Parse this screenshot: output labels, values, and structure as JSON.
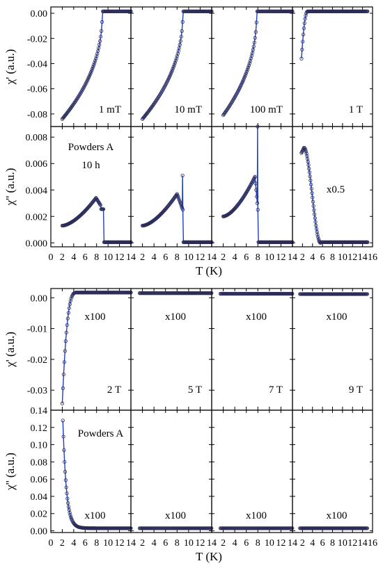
{
  "chart_data": {
    "type": "scatter",
    "x_axis_label": "T (K)",
    "x_ticks": [
      "0",
      "2",
      "4",
      "6",
      "8",
      "10",
      "12",
      "14",
      "16"
    ],
    "groups": [
      {
        "rows": [
          {
            "ylabel": "χ' (a.u.)",
            "ylim": [
              -0.09,
              0.005
            ],
            "yticks": [
              "0.00",
              "-0.02",
              "-0.04",
              "-0.06",
              "-0.08"
            ],
            "ytick_values": [
              0.0,
              -0.02,
              -0.04,
              -0.06,
              -0.08
            ],
            "panels": [
              {
                "field": "1 mT",
                "curve": "dia",
                "params": {
                  "Tc": 9.0,
                  "xmin": 2.0,
                  "xmax": 14,
                  "base": 0.0015,
                  "depth": -0.0855
                }
              },
              {
                "field": "10 mT",
                "curve": "dia",
                "params": {
                  "Tc": 9.0,
                  "xmin": 2.0,
                  "xmax": 14,
                  "base": 0.0015,
                  "depth": -0.0855
                }
              },
              {
                "field": "100 mT",
                "curve": "dia",
                "params": {
                  "Tc": 7.8,
                  "xmin": 2.0,
                  "xmax": 14,
                  "base": 0.0015,
                  "depth": -0.0825
                }
              },
              {
                "field": "1 T",
                "curve": "sat",
                "params": {
                  "Tc": 3.0,
                  "xmin": 1.8,
                  "xmax": 15,
                  "base": 0.0015,
                  "depth": -0.0375,
                  "p": 2
                }
              }
            ]
          },
          {
            "ylabel": "χ'' (a.u.)",
            "ylim": [
              -0.0003,
              0.0088
            ],
            "yticks": [
              "0.008",
              "0.006",
              "0.004",
              "0.002",
              "0.000"
            ],
            "ytick_values": [
              0.008,
              0.006,
              0.004,
              0.002,
              0.0
            ],
            "panels": [
              {
                "label": "Powders A",
                "sublabel": "10 h",
                "curve": "peak",
                "params": {
                  "xmin": 2,
                  "xp": 7.9,
                  "y0": 0.0013,
                  "yp": 0.0034,
                  "xc": 9.2,
                  "xmax": 14,
                  "dip": 0.0003
                }
              },
              {
                "curve": "peak",
                "params": {
                  "xmin": 2,
                  "xp": 8.0,
                  "y0": 0.0013,
                  "yp": 0.0037,
                  "xc": 9.0,
                  "xmax": 14,
                  "spike": 0.0051
                }
              },
              {
                "curve": "peak",
                "params": {
                  "xmin": 2,
                  "xp": 7.5,
                  "y0": 0.002,
                  "yp": 0.005,
                  "xc": 8.0,
                  "xmax": 14,
                  "spike": 0.0088
                }
              },
              {
                "scale": "x0.5",
                "curve": "bell",
                "params": {
                  "xmin": 1.8,
                  "xp": 2.3,
                  "yp": 0.0072,
                  "x1": 3.2,
                  "x2": 5.6,
                  "xmax": 15
                }
              }
            ]
          }
        ]
      },
      {
        "rows": [
          {
            "ylabel": "χ' (a.u.)",
            "ylim": [
              -0.0365,
              0.003
            ],
            "yticks": [
              "0.00",
              "-0.01",
              "-0.02",
              "-0.03"
            ],
            "ytick_values": [
              0.0,
              -0.01,
              -0.02,
              -0.03
            ],
            "panels": [
              {
                "field": "2 T",
                "scale": "x100",
                "curve": "sat",
                "params": {
                  "Tc": 4.5,
                  "xmin": 2.0,
                  "xmax": 14,
                  "base": 0.0017,
                  "depth": -0.036,
                  "p": 3
                }
              },
              {
                "field": "5 T",
                "scale": "x100",
                "curve": "flat",
                "params": {
                  "xmin": 1.5,
                  "xmax": 14,
                  "y": 0.0015
                }
              },
              {
                "field": "7 T",
                "scale": "x100",
                "curve": "flat",
                "params": {
                  "xmin": 1.5,
                  "xmax": 14,
                  "y": 0.0013
                }
              },
              {
                "field": "9 T",
                "scale": "x100",
                "curve": "flat",
                "params": {
                  "xmin": 1.5,
                  "xmax": 15,
                  "y": 0.0012
                }
              }
            ]
          },
          {
            "ylabel": "χ'' (a.u.)",
            "ylim": [
              -0.002,
              0.14
            ],
            "yticks": [
              "0.14",
              "0.12",
              "0.10",
              "0.08",
              "0.06",
              "0.04",
              "0.02",
              "0.00"
            ],
            "ytick_values": [
              0.14,
              0.12,
              0.1,
              0.08,
              0.06,
              0.04,
              0.02,
              0.0
            ],
            "panels": [
              {
                "label": "Powders A",
                "scale": "x100",
                "curve": "decay",
                "params": {
                  "xmin": 2.1,
                  "xmax": 14,
                  "y0": 0.128,
                  "yb": 0.003,
                  "tau": 0.62
                }
              },
              {
                "scale": "x100",
                "curve": "flat",
                "params": {
                  "xmin": 1.5,
                  "xmax": 14,
                  "y": 0.003
                }
              },
              {
                "scale": "x100",
                "curve": "flat",
                "params": {
                  "xmin": 1.5,
                  "xmax": 14,
                  "y": 0.003
                }
              },
              {
                "scale": "x100",
                "curve": "flat",
                "params": {
                  "xmin": 1.5,
                  "xmax": 15,
                  "y": 0.003
                }
              }
            ]
          }
        ]
      }
    ],
    "colors": {
      "marker": "#2b2b55",
      "line": "#1f3fbf",
      "axis": "#000000"
    }
  }
}
